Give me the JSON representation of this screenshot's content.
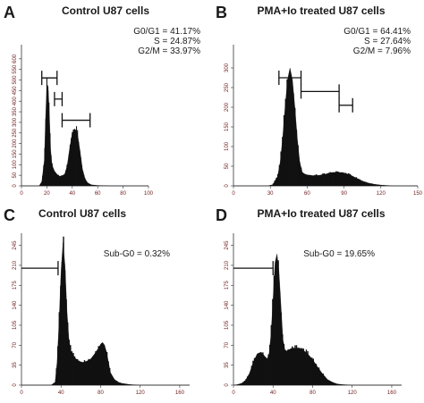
{
  "chart_data": [
    {
      "type": "area",
      "panel_label": "A",
      "title": "Control U87 cells",
      "annotations": [
        "G0/G1 = 41.17%",
        "S = 24.87%",
        "G2/M = 33.97%"
      ],
      "xlim": [
        0,
        100
      ],
      "ylim": [
        0,
        650
      ],
      "x_ticks": [
        "0",
        "20",
        "40",
        "60",
        "80",
        "100"
      ],
      "y_ticks": [
        "0",
        "50",
        "100",
        "150",
        "200",
        "250",
        "300",
        "350",
        "400",
        "450",
        "500",
        "550",
        "600"
      ],
      "x": [
        0,
        14,
        16,
        18,
        19,
        20,
        21,
        22,
        23,
        24,
        26,
        28,
        30,
        32,
        34,
        36,
        38,
        40,
        42,
        44,
        46,
        48,
        50,
        52,
        55,
        60,
        65,
        70,
        100
      ],
      "y": [
        0,
        0,
        20,
        120,
        320,
        480,
        470,
        330,
        170,
        100,
        70,
        55,
        45,
        48,
        55,
        95,
        180,
        250,
        270,
        250,
        170,
        80,
        35,
        15,
        5,
        2,
        1,
        0,
        0
      ],
      "gates": [
        {
          "name": "G0/G1",
          "x": [
            16,
            28
          ],
          "y": 510
        },
        {
          "name": "S",
          "x": [
            26,
            32
          ],
          "y": 410
        },
        {
          "name": "G2/M",
          "x": [
            32,
            54
          ],
          "y": 310
        }
      ]
    },
    {
      "type": "area",
      "panel_label": "B",
      "title": "PMA+Io treated U87 cells",
      "annotations": [
        "G0/G1 = 64.41%",
        "S = 27.64%",
        "G2/M = 7.96%"
      ],
      "xlim": [
        0,
        150
      ],
      "ylim": [
        0,
        350
      ],
      "x_ticks": [
        "0",
        "30",
        "60",
        "90",
        "120",
        "150"
      ],
      "y_ticks": [
        "0",
        "50",
        "100",
        "150",
        "200",
        "250",
        "300"
      ],
      "x": [
        0,
        28,
        32,
        36,
        38,
        40,
        42,
        44,
        46,
        48,
        50,
        52,
        54,
        56,
        58,
        60,
        65,
        70,
        75,
        80,
        85,
        90,
        95,
        100,
        105,
        110,
        115,
        120,
        125,
        130,
        150
      ],
      "y": [
        0,
        0,
        3,
        25,
        60,
        120,
        200,
        270,
        300,
        270,
        200,
        120,
        60,
        35,
        30,
        28,
        26,
        27,
        30,
        34,
        35,
        33,
        28,
        20,
        12,
        7,
        4,
        2,
        1,
        0,
        0
      ],
      "gates": [
        {
          "name": "G0/G1",
          "x": [
            37,
            55
          ],
          "y": 275
        },
        {
          "name": "S",
          "x": [
            55,
            86
          ],
          "y": 240
        },
        {
          "name": "G2/M",
          "x": [
            86,
            97
          ],
          "y": 205
        }
      ]
    },
    {
      "type": "area",
      "panel_label": "C",
      "title": "Control U87 cells",
      "annotations": [
        "Sub-G0 = 0.32%"
      ],
      "xlim": [
        0,
        170
      ],
      "ylim": [
        0,
        260
      ],
      "x_ticks": [
        "0",
        "40",
        "80",
        "120",
        "160"
      ],
      "y_ticks": [
        "0",
        "35",
        "70",
        "105",
        "140",
        "175",
        "210",
        "245"
      ],
      "x": [
        0,
        30,
        34,
        36,
        38,
        40,
        42,
        44,
        46,
        48,
        50,
        54,
        58,
        62,
        66,
        70,
        74,
        78,
        80,
        82,
        84,
        86,
        88,
        90,
        94,
        98,
        102,
        106,
        110,
        120,
        170
      ],
      "y": [
        0,
        0,
        5,
        40,
        110,
        200,
        250,
        210,
        130,
        80,
        60,
        48,
        42,
        40,
        42,
        46,
        55,
        65,
        72,
        75,
        70,
        58,
        40,
        22,
        10,
        5,
        3,
        2,
        1,
        0,
        0
      ],
      "gates": [
        {
          "name": "Sub-G0",
          "x": [
            0,
            37
          ],
          "y": 205
        }
      ]
    },
    {
      "type": "area",
      "panel_label": "D",
      "title": "PMA+Io treated U87 cells",
      "annotations": [
        "Sub-G0 = 19.65%"
      ],
      "xlim": [
        0,
        170
      ],
      "ylim": [
        0,
        260
      ],
      "x_ticks": [
        "0",
        "40",
        "80",
        "120",
        "160"
      ],
      "y_ticks": [
        "0",
        "35",
        "70",
        "105",
        "140",
        "175",
        "210",
        "245"
      ],
      "x": [
        0,
        4,
        8,
        12,
        16,
        20,
        24,
        28,
        32,
        34,
        36,
        38,
        40,
        42,
        44,
        46,
        48,
        50,
        52,
        54,
        56,
        58,
        60,
        65,
        70,
        75,
        80,
        85,
        90,
        95,
        100,
        105,
        110,
        120,
        170
      ],
      "y": [
        0,
        1,
        3,
        8,
        20,
        40,
        55,
        58,
        50,
        46,
        55,
        90,
        150,
        215,
        230,
        200,
        140,
        80,
        62,
        60,
        62,
        64,
        65,
        64,
        62,
        55,
        45,
        32,
        20,
        10,
        5,
        2,
        1,
        0,
        0
      ],
      "gates": [
        {
          "name": "Sub-G0",
          "x": [
            0,
            40
          ],
          "y": 205
        }
      ]
    }
  ]
}
